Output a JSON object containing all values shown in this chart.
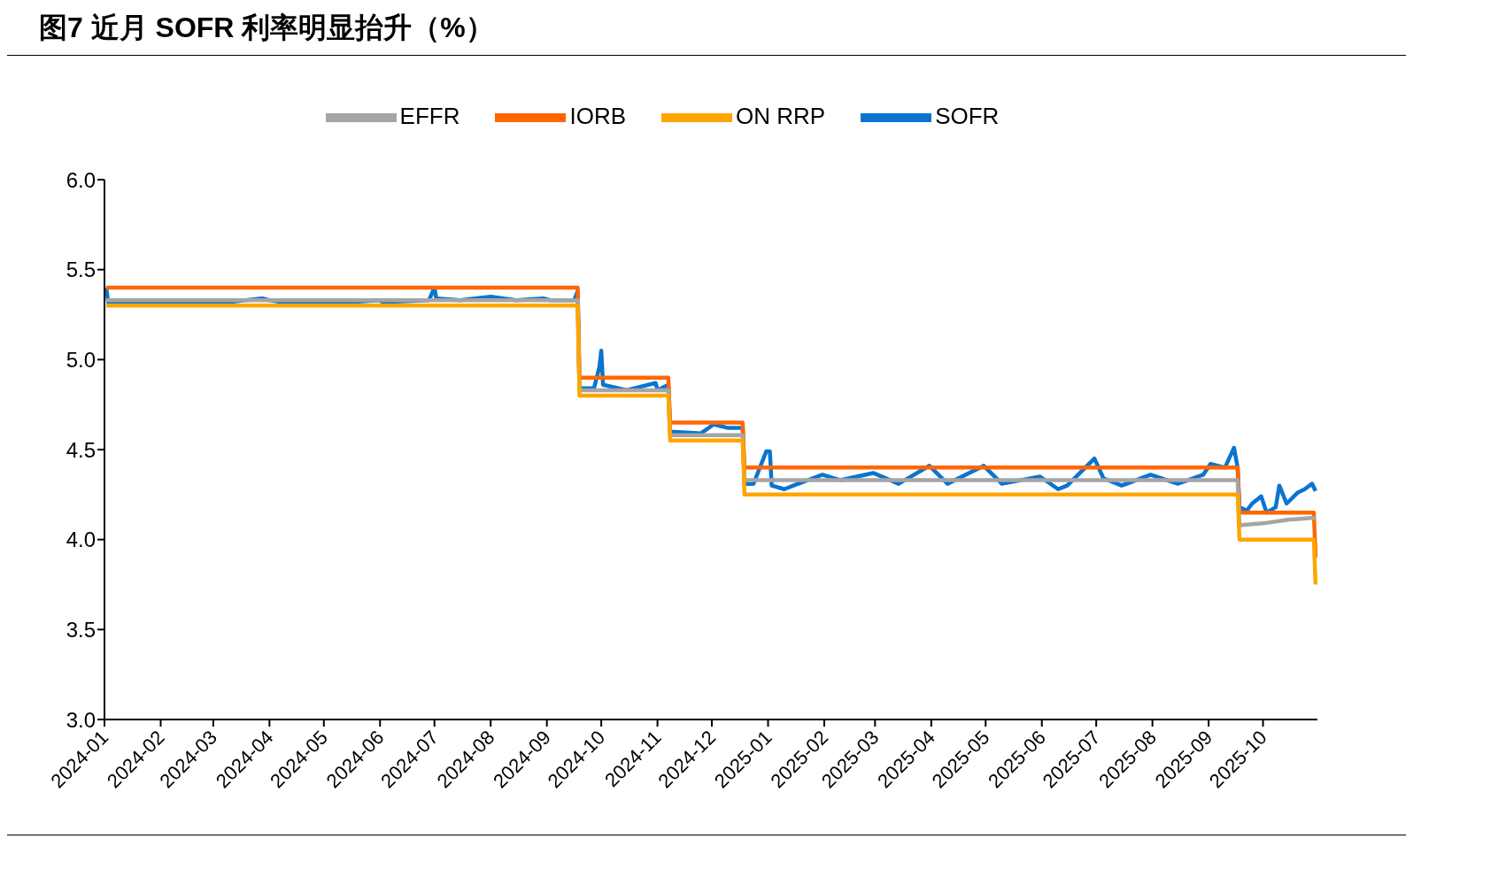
{
  "chart_data": {
    "type": "line",
    "title": "图7  近月 SOFR 利率明显抬升（%）",
    "xlim": [
      "2024-01-01",
      "2025-10-31"
    ],
    "xticks": [
      "2024-01",
      "2024-02",
      "2024-03",
      "2024-04",
      "2024-05",
      "2024-06",
      "2024-07",
      "2024-08",
      "2024-09",
      "2024-10",
      "2024-11",
      "2024-12",
      "2025-01",
      "2025-02",
      "2025-03",
      "2025-04",
      "2025-05",
      "2025-06",
      "2025-07",
      "2025-08",
      "2025-09",
      "2025-10"
    ],
    "ylim": [
      3,
      6
    ],
    "yticks": [
      {
        "value": 3,
        "label": "3.0"
      },
      {
        "value": 3.5,
        "label": "3.5"
      },
      {
        "value": 4,
        "label": "4.0"
      },
      {
        "value": 4.5,
        "label": "4.5"
      },
      {
        "value": 5,
        "label": "5.0"
      },
      {
        "value": 5.5,
        "label": "5.5"
      },
      {
        "value": 6,
        "label": "6.0"
      }
    ],
    "grid": false,
    "legend": "top",
    "marker": "none",
    "line_style": "solid",
    "series": [
      {
        "name": "SOFR",
        "color": "#0a74d0",
        "x": [
          "2024-01-02",
          "2024-01-03",
          "2024-02-01",
          "2024-03-01",
          "2024-03-28",
          "2024-04-01",
          "2024-04-15",
          "2024-05-01",
          "2024-05-31",
          "2024-06-03",
          "2024-06-28",
          "2024-07-01",
          "2024-07-02",
          "2024-07-15",
          "2024-08-01",
          "2024-08-15",
          "2024-08-30",
          "2024-09-03",
          "2024-09-16",
          "2024-09-18",
          "2024-09-19",
          "2024-09-27",
          "2024-09-30",
          "2024-10-01",
          "2024-10-02",
          "2024-10-15",
          "2024-10-31",
          "2024-11-01",
          "2024-11-07",
          "2024-11-08",
          "2024-11-25",
          "2024-12-02",
          "2024-12-10",
          "2024-12-18",
          "2024-12-19",
          "2024-12-24",
          "2024-12-31",
          "2025-01-02",
          "2025-01-03",
          "2025-01-10",
          "2025-01-15",
          "2025-01-31",
          "2025-02-10",
          "2025-02-28",
          "2025-03-14",
          "2025-03-31",
          "2025-04-10",
          "2025-04-30",
          "2025-05-10",
          "2025-05-31",
          "2025-06-10",
          "2025-06-15",
          "2025-06-30",
          "2025-07-05",
          "2025-07-15",
          "2025-07-31",
          "2025-08-15",
          "2025-08-29",
          "2025-09-02",
          "2025-09-10",
          "2025-09-15",
          "2025-09-17",
          "2025-09-18",
          "2025-09-22",
          "2025-09-25",
          "2025-09-30",
          "2025-10-03",
          "2025-10-08",
          "2025-10-10",
          "2025-10-14",
          "2025-10-20",
          "2025-10-24",
          "2025-10-28",
          "2025-10-30"
        ],
        "values": [
          5.4,
          5.32,
          5.31,
          5.31,
          5.34,
          5.33,
          5.31,
          5.31,
          5.33,
          5.32,
          5.33,
          5.4,
          5.34,
          5.33,
          5.35,
          5.33,
          5.34,
          5.33,
          5.33,
          5.38,
          4.84,
          4.84,
          4.96,
          5.05,
          4.86,
          4.83,
          4.87,
          4.83,
          4.86,
          4.6,
          4.59,
          4.64,
          4.62,
          4.62,
          4.31,
          4.31,
          4.49,
          4.49,
          4.3,
          4.28,
          4.3,
          4.36,
          4.33,
          4.37,
          4.31,
          4.41,
          4.31,
          4.41,
          4.31,
          4.35,
          4.28,
          4.3,
          4.45,
          4.34,
          4.3,
          4.36,
          4.31,
          4.36,
          4.42,
          4.4,
          4.51,
          4.4,
          4.18,
          4.16,
          4.2,
          4.24,
          4.15,
          4.18,
          4.3,
          4.2,
          4.26,
          4.28,
          4.31,
          4.27
        ]
      },
      {
        "name": "IORB",
        "color": "#ff6600",
        "x": [
          "2024-01-02",
          "2024-09-18",
          "2024-09-19",
          "2024-11-07",
          "2024-11-08",
          "2024-12-18",
          "2024-12-19",
          "2025-09-17",
          "2025-09-18",
          "2025-10-29",
          "2025-10-30"
        ],
        "values": [
          5.4,
          5.4,
          4.9,
          4.9,
          4.65,
          4.65,
          4.4,
          4.4,
          4.15,
          4.15,
          3.9
        ]
      },
      {
        "name": "EFFR",
        "color": "#a5a5a5",
        "x": [
          "2024-01-02",
          "2024-09-18",
          "2024-09-19",
          "2024-11-07",
          "2024-11-08",
          "2024-12-18",
          "2024-12-19",
          "2025-09-17",
          "2025-09-18",
          "2025-10-01",
          "2025-10-15",
          "2025-10-28",
          "2025-10-30"
        ],
        "values": [
          5.33,
          5.33,
          4.83,
          4.83,
          4.58,
          4.58,
          4.33,
          4.33,
          4.08,
          4.09,
          4.11,
          4.12,
          4.12
        ]
      },
      {
        "name": "ON RRP",
        "color": "#ffa500",
        "x": [
          "2024-01-02",
          "2024-09-18",
          "2024-09-19",
          "2024-11-07",
          "2024-11-08",
          "2024-12-18",
          "2024-12-19",
          "2025-09-17",
          "2025-09-18",
          "2025-10-29",
          "2025-10-30"
        ],
        "values": [
          5.3,
          5.3,
          4.8,
          4.8,
          4.55,
          4.55,
          4.25,
          4.25,
          4.0,
          4.0,
          3.75
        ]
      }
    ]
  }
}
